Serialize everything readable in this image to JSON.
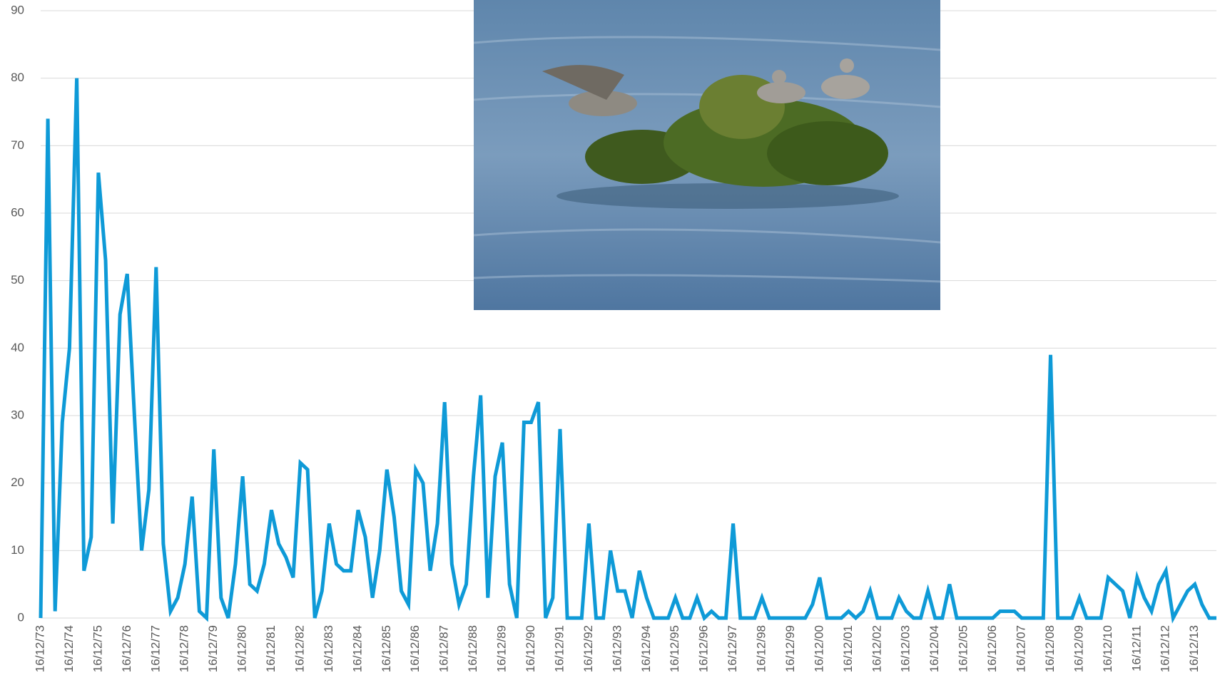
{
  "chart_data": {
    "type": "line",
    "categories": [
      "16/12/73",
      null,
      null,
      null,
      "16/12/74",
      null,
      null,
      null,
      "16/12/75",
      null,
      null,
      null,
      "16/12/76",
      null,
      null,
      null,
      "16/12/77",
      null,
      null,
      null,
      "16/12/78",
      null,
      null,
      null,
      "16/12/79",
      null,
      null,
      null,
      "16/12/80",
      null,
      null,
      null,
      "16/12/81",
      null,
      null,
      null,
      "16/12/82",
      null,
      null,
      null,
      "16/12/83",
      null,
      null,
      null,
      "16/12/84",
      null,
      null,
      null,
      "16/12/85",
      null,
      null,
      null,
      "16/12/86",
      null,
      null,
      null,
      "16/12/87",
      null,
      null,
      null,
      "16/12/88",
      null,
      null,
      null,
      "16/12/89",
      null,
      null,
      null,
      "16/12/90",
      null,
      null,
      null,
      "16/12/91",
      null,
      null,
      null,
      "16/12/92",
      null,
      null,
      null,
      "16/12/93",
      null,
      null,
      null,
      "16/12/94",
      null,
      null,
      null,
      "16/12/95",
      null,
      null,
      null,
      "16/12/96",
      null,
      null,
      null,
      "16/12/97",
      null,
      null,
      null,
      "16/12/98",
      null,
      null,
      null,
      "16/12/99",
      null,
      null,
      null,
      "16/12/00",
      null,
      null,
      null,
      "16/12/01",
      null,
      null,
      null,
      "16/12/02",
      null,
      null,
      null,
      "16/12/03",
      null,
      null,
      null,
      "16/12/04",
      null,
      null,
      null,
      "16/12/05",
      null,
      null,
      null,
      "16/12/06",
      null,
      null,
      null,
      "16/12/07",
      null,
      null,
      null,
      "16/12/08",
      null,
      null,
      null,
      "16/12/09",
      null,
      null,
      null,
      "16/12/10",
      null,
      null,
      null,
      "16/12/11",
      null,
      null,
      null,
      "16/12/12",
      null,
      null,
      null,
      "16/12/13",
      null,
      null,
      null
    ],
    "values": [
      0,
      74,
      1,
      29,
      40,
      80,
      7,
      12,
      66,
      53,
      14,
      45,
      51,
      30,
      10,
      19,
      52,
      11,
      1,
      3,
      8,
      18,
      1,
      0,
      25,
      3,
      0,
      8,
      21,
      5,
      4,
      8,
      16,
      11,
      9,
      6,
      23,
      22,
      0,
      4,
      14,
      8,
      7,
      7,
      16,
      12,
      3,
      10,
      22,
      15,
      4,
      2,
      22,
      20,
      7,
      14,
      32,
      8,
      2,
      5,
      21,
      33,
      3,
      21,
      26,
      5,
      0,
      29,
      29,
      32,
      0,
      3,
      28,
      0,
      0,
      0,
      14,
      0,
      0,
      10,
      4,
      4,
      0,
      7,
      3,
      0,
      0,
      0,
      3,
      0,
      0,
      3,
      0,
      1,
      0,
      0,
      14,
      0,
      0,
      0,
      3,
      0,
      0,
      0,
      0,
      0,
      0,
      2,
      6,
      0,
      0,
      0,
      1,
      0,
      1,
      4,
      0,
      0,
      0,
      3,
      1,
      0,
      0,
      4,
      0,
      0,
      5,
      0,
      0,
      0,
      0,
      0,
      0,
      1,
      1,
      1,
      0,
      0,
      0,
      0,
      39,
      0,
      0,
      0,
      3,
      0,
      0,
      0,
      6,
      5,
      4,
      0,
      6,
      3,
      1,
      5,
      7,
      0,
      2,
      4,
      5,
      2,
      0,
      0
    ],
    "color": "#0e9ad7",
    "ylim": [
      0,
      90
    ],
    "yticks": [
      0,
      10,
      20,
      30,
      40,
      50,
      60,
      70,
      80,
      90
    ],
    "grid": true
  }
}
